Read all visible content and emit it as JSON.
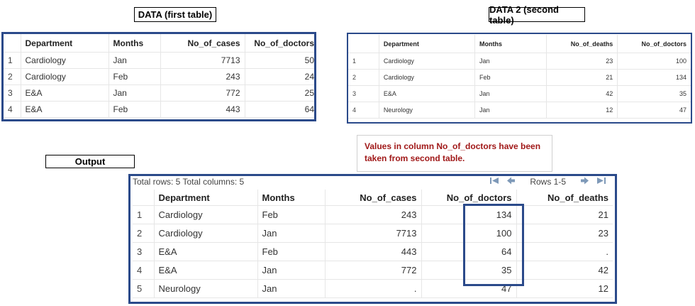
{
  "labels": {
    "data1": "DATA (first table)",
    "data2": "DATA 2 (second table)",
    "output": "Output",
    "note": "Values in column No_of_doctors have been taken from second table."
  },
  "table1": {
    "headers": [
      "",
      "Department",
      "Months",
      "No_of_cases",
      "No_of_doctors"
    ],
    "rows": [
      [
        "1",
        "Cardiology",
        "Jan",
        "7713",
        "50"
      ],
      [
        "2",
        "Cardiology",
        "Feb",
        "243",
        "24"
      ],
      [
        "3",
        "E&A",
        "Jan",
        "772",
        "25"
      ],
      [
        "4",
        "E&A",
        "Feb",
        "443",
        "64"
      ]
    ]
  },
  "table2": {
    "headers": [
      "",
      "Department",
      "Months",
      "No_of_deaths",
      "No_of_doctors"
    ],
    "rows": [
      [
        "1",
        "Cardiology",
        "Jan",
        "23",
        "100"
      ],
      [
        "2",
        "Cardiology",
        "Feb",
        "21",
        "134"
      ],
      [
        "3",
        "E&A",
        "Jan",
        "42",
        "35"
      ],
      [
        "4",
        "Neurology",
        "Jan",
        "12",
        "47"
      ]
    ]
  },
  "output": {
    "summary": "Total rows: 5  Total columns: 5",
    "pager_label": "Rows 1-5",
    "headers": [
      "",
      "Department",
      "Months",
      "No_of_cases",
      "No_of_doctors",
      "No_of_deaths"
    ],
    "rows": [
      [
        "1",
        "Cardiology",
        "Feb",
        "243",
        "134",
        "21"
      ],
      [
        "2",
        "Cardiology",
        "Jan",
        "7713",
        "100",
        "23"
      ],
      [
        "3",
        "E&A",
        "Feb",
        "443",
        "64",
        "."
      ],
      [
        "4",
        "E&A",
        "Jan",
        "772",
        "35",
        "42"
      ],
      [
        "5",
        "Neurology",
        "Jan",
        ".",
        "47",
        "12"
      ]
    ]
  },
  "icons": {
    "first": "first-page-icon",
    "prev": "previous-page-icon",
    "next": "next-page-icon",
    "last": "last-page-icon"
  },
  "colors": {
    "frame": "#2b4a8a",
    "note_text": "#a01818",
    "pager_icon": "#7e99b8"
  }
}
